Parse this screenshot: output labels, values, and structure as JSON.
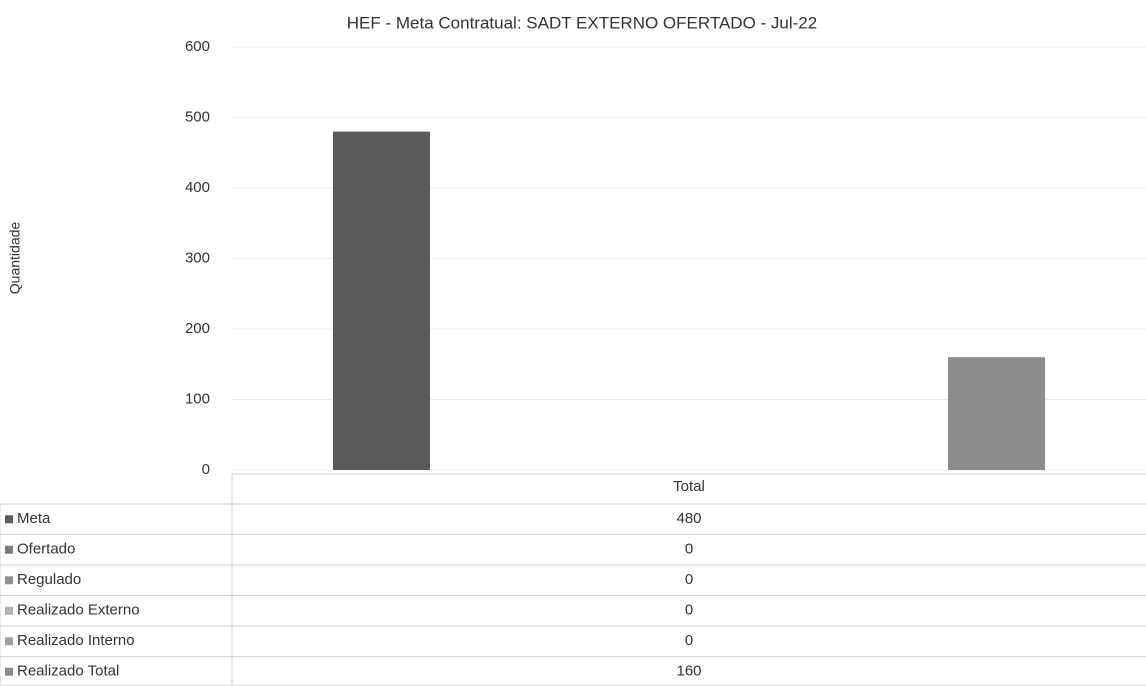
{
  "chart_data": {
    "type": "bar",
    "title": "HEF - Meta Contratual: SADT EXTERNO OFERTADO - Jul-22",
    "ylabel": "Quantidade",
    "categories": [
      "Total"
    ],
    "series": [
      {
        "name": "Meta",
        "color": "#5a5a5a",
        "values": [
          480
        ]
      },
      {
        "name": "Ofertado",
        "color": "#7c7c7c",
        "values": [
          0
        ]
      },
      {
        "name": "Regulado",
        "color": "#909090",
        "values": [
          0
        ]
      },
      {
        "name": "Realizado Externo",
        "color": "#b4b4b4",
        "values": [
          0
        ]
      },
      {
        "name": "Realizado Interno",
        "color": "#a0a0a0",
        "values": [
          0
        ]
      },
      {
        "name": "Realizado Total",
        "color": "#8c8c8c",
        "values": [
          160
        ]
      }
    ],
    "ylim": [
      0,
      600
    ],
    "yticks": [
      0,
      100,
      200,
      300,
      400,
      500,
      600
    ],
    "grid": true
  }
}
